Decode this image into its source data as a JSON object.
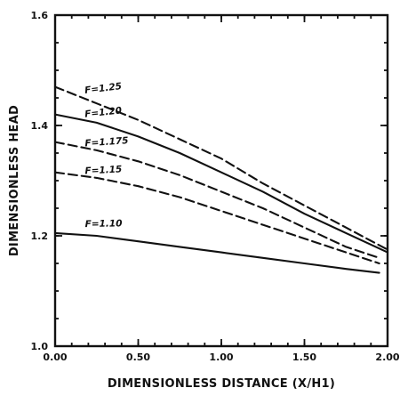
{
  "chart_data": {
    "type": "line",
    "title": "",
    "xlabel": "DIMENSIONLESS DISTANCE (X/H1)",
    "ylabel": "DIMENSIONLESS HEAD",
    "xlim": [
      0.0,
      2.0
    ],
    "ylim": [
      1.0,
      1.6
    ],
    "x_ticks": [
      0.0,
      0.5,
      1.0,
      1.5,
      2.0
    ],
    "x_tick_labels": [
      "0.00",
      "0.50",
      "1.00",
      "1.50",
      "2.00"
    ],
    "y_ticks": [
      1.0,
      1.2,
      1.4,
      1.6
    ],
    "y_tick_labels": [
      "1.0",
      "1.2",
      "1.4",
      "1.6"
    ],
    "grid": false,
    "series": [
      {
        "name": "F=1.25",
        "style": "dashed",
        "x": [
          0.0,
          0.25,
          0.5,
          0.75,
          1.0,
          1.25,
          1.5,
          1.75,
          2.0
        ],
        "y": [
          1.47,
          1.44,
          1.41,
          1.375,
          1.34,
          1.295,
          1.255,
          1.215,
          1.175
        ]
      },
      {
        "name": "F=1.20",
        "style": "solid",
        "x": [
          0.0,
          0.25,
          0.5,
          0.75,
          1.0,
          1.25,
          1.5,
          1.75,
          2.0
        ],
        "y": [
          1.42,
          1.405,
          1.38,
          1.35,
          1.315,
          1.28,
          1.24,
          1.205,
          1.17
        ]
      },
      {
        "name": "F=1.175",
        "style": "dashed",
        "x": [
          0.0,
          0.25,
          0.5,
          0.75,
          1.0,
          1.25,
          1.5,
          1.75,
          1.95
        ],
        "y": [
          1.37,
          1.355,
          1.335,
          1.31,
          1.28,
          1.25,
          1.215,
          1.18,
          1.16
        ]
      },
      {
        "name": "F=1.15",
        "style": "dashed",
        "x": [
          0.0,
          0.25,
          0.5,
          0.75,
          1.0,
          1.25,
          1.5,
          1.75,
          1.95
        ],
        "y": [
          1.315,
          1.305,
          1.29,
          1.27,
          1.245,
          1.22,
          1.195,
          1.17,
          1.15
        ]
      },
      {
        "name": "F=1.10",
        "style": "solid",
        "x": [
          0.0,
          0.25,
          0.5,
          0.75,
          1.0,
          1.25,
          1.5,
          1.75,
          1.95
        ],
        "y": [
          1.205,
          1.2,
          1.19,
          1.18,
          1.17,
          1.16,
          1.15,
          1.14,
          1.133
        ]
      }
    ]
  }
}
